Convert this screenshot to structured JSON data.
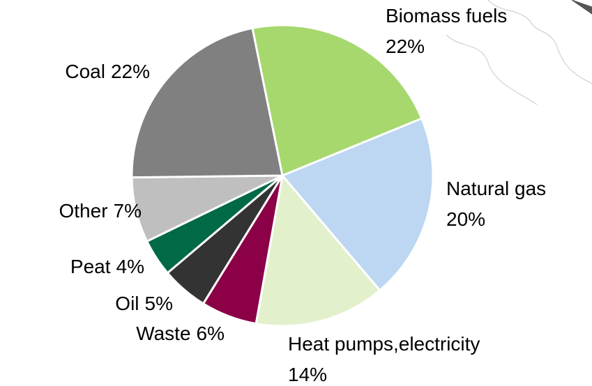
{
  "chart_data": {
    "type": "pie",
    "categories": [
      "Biomass fuels",
      "Natural gas",
      "Heat pumps,electricity",
      "Waste",
      "Oil",
      "Peat",
      "Other",
      "Coal"
    ],
    "values": [
      22,
      20,
      14,
      6,
      5,
      4,
      7,
      22
    ],
    "value_labels": [
      "22%",
      "20%",
      "14%",
      "6%",
      "5%",
      "4%",
      "7%",
      "22%"
    ],
    "colors": [
      "#a6d86e",
      "#bdd7f2",
      "#e2f1cc",
      "#8b0046",
      "#333333",
      "#006a46",
      "#bfbfbf",
      "#808080"
    ]
  }
}
